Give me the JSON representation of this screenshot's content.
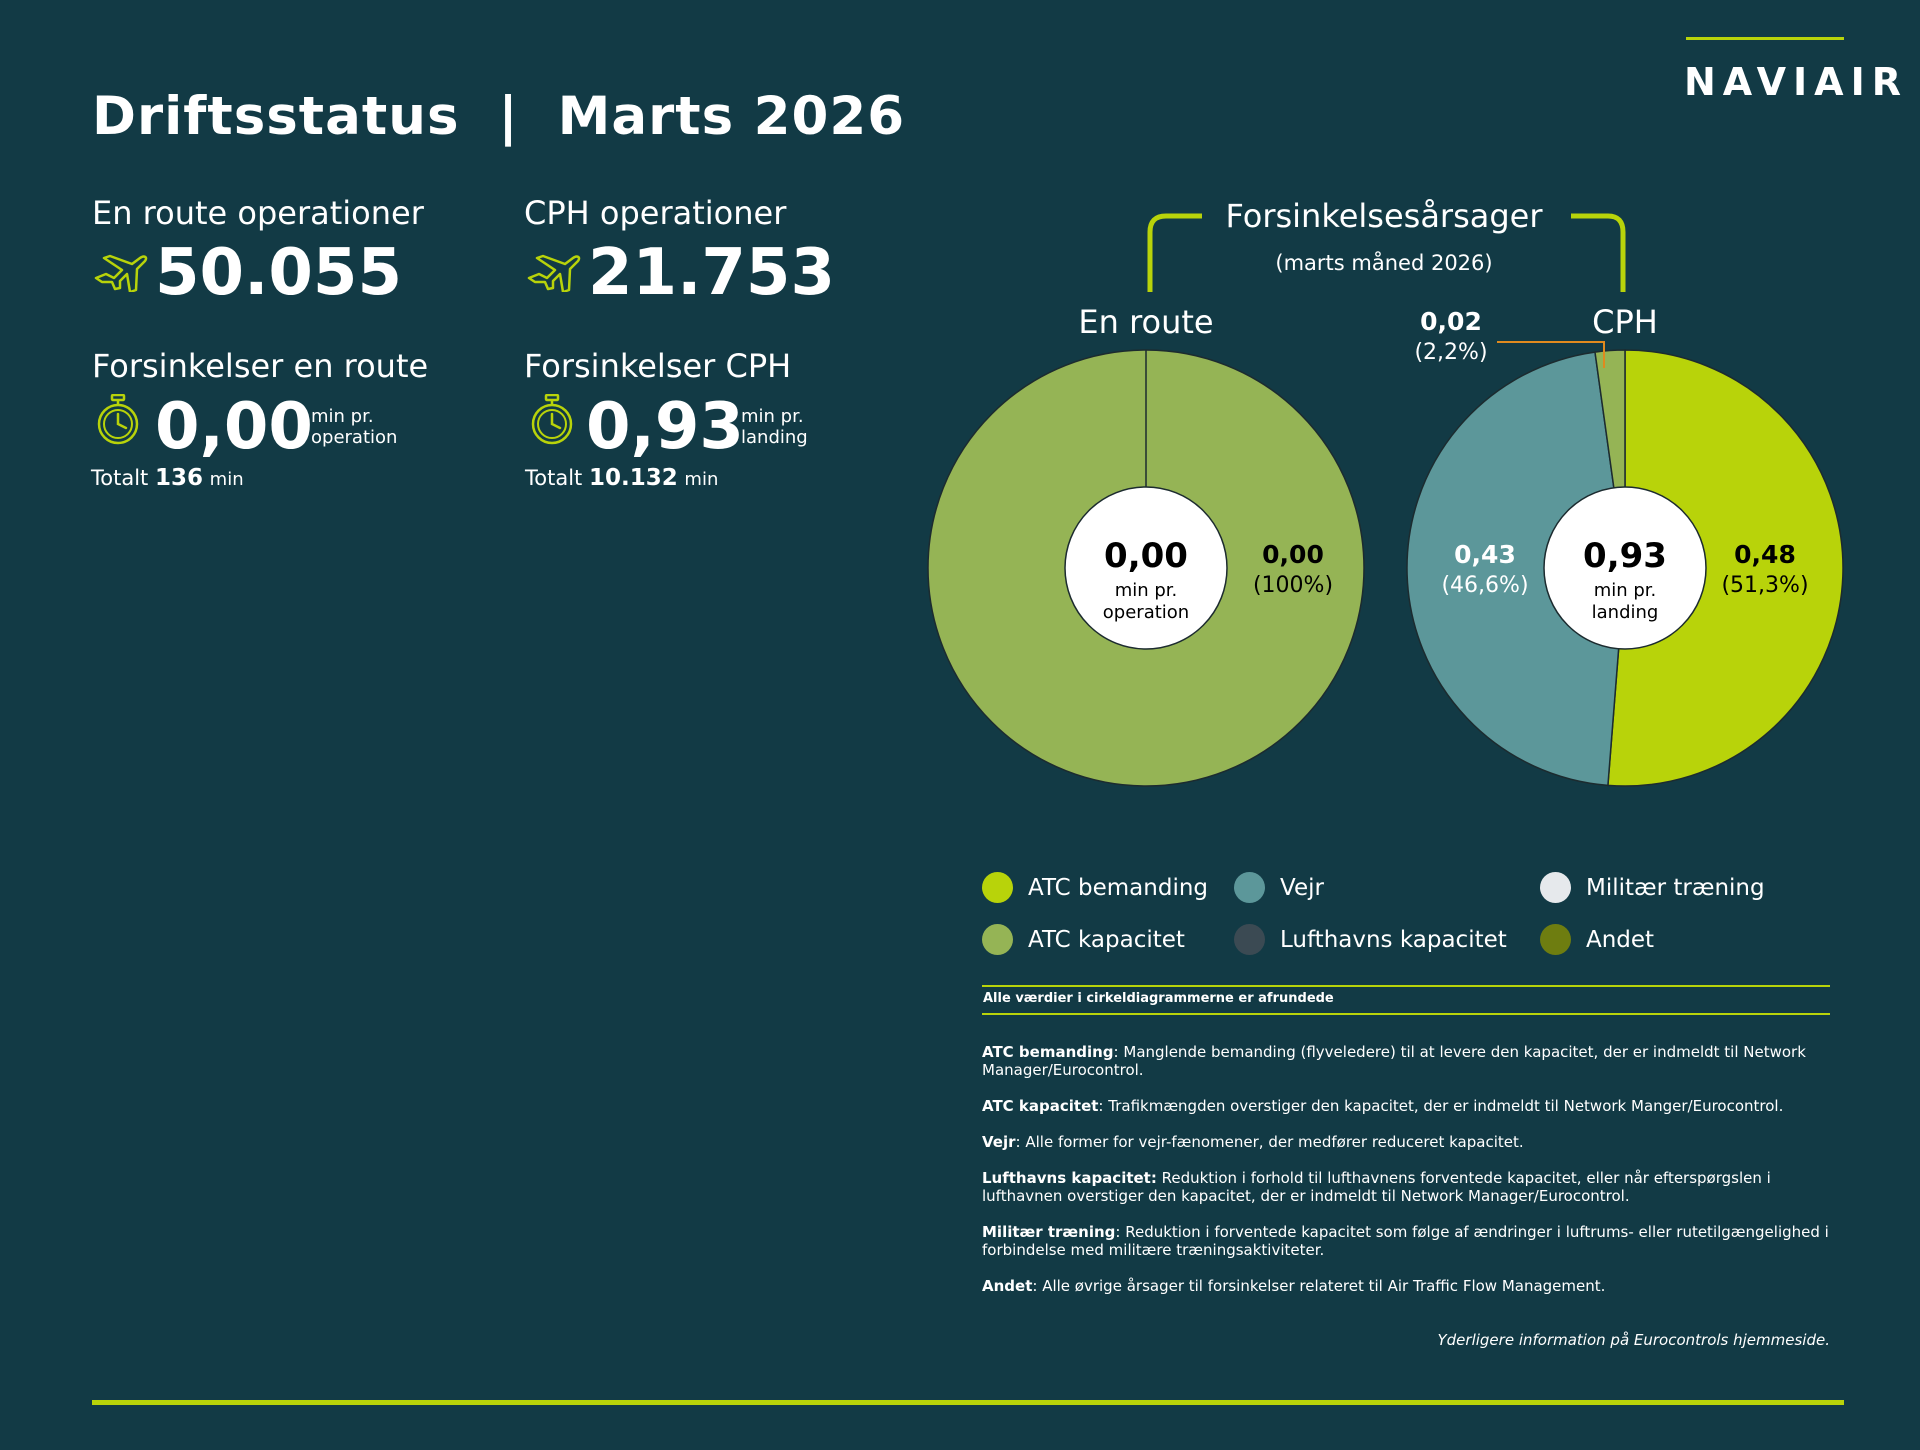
{
  "header": {
    "title": "Driftsstatus  |  Marts 2026",
    "logo_text": "NAVIAIR"
  },
  "enroute": {
    "ops_label": "En route operationer",
    "ops_value": "50.055",
    "delay_label": "Forsinkelser en route",
    "delay_value": "0,00",
    "delay_unit_1": "min pr.",
    "delay_unit_2": "operation",
    "total_label": "Totalt",
    "total_value": "136",
    "total_unit": "min"
  },
  "cph": {
    "ops_label": "CPH operationer",
    "ops_value": "21.753",
    "delay_label": "Forsinkelser CPH",
    "delay_value": "0,93",
    "delay_unit_1": "min pr.",
    "delay_unit_2": "landing",
    "total_label": "Totalt",
    "total_value": "10.132",
    "total_unit": "min"
  },
  "causes": {
    "title": "Forsinkelsesårsager",
    "subtitle": "(marts måned 2026)"
  },
  "chart_data": [
    {
      "type": "pie",
      "title": "En route",
      "center_value": "0,00",
      "center_unit_1": "min pr.",
      "center_unit_2": "operation",
      "slices": [
        {
          "name": "ATC kapacitet",
          "value": 0.0,
          "percent": 100.0,
          "value_label": "0,00",
          "pct_label": "(100%)",
          "color": "#95b455"
        }
      ]
    },
    {
      "type": "pie",
      "title": "CPH",
      "center_value": "0,93",
      "center_unit_1": "min pr.",
      "center_unit_2": "landing",
      "slices": [
        {
          "name": "ATC bemanding",
          "value": 0.48,
          "percent": 51.3,
          "value_label": "0,48",
          "pct_label": "(51,3%)",
          "color": "#b8d30a"
        },
        {
          "name": "Vejr",
          "value": 0.43,
          "percent": 46.6,
          "value_label": "0,43",
          "pct_label": "(46,6%)",
          "color": "#5c979a"
        },
        {
          "name": "ATC kapacitet",
          "value": 0.02,
          "percent": 2.2,
          "value_label": "0,02",
          "pct_label": "(2,2%)",
          "color": "#95b455"
        }
      ]
    }
  ],
  "legend": [
    {
      "label": "ATC bemanding",
      "color": "#b8d30a"
    },
    {
      "label": "Vejr",
      "color": "#5c979a"
    },
    {
      "label": "Militær træning",
      "color": "#e6e9ec"
    },
    {
      "label": "ATC kapacitet",
      "color": "#95b455"
    },
    {
      "label": "Lufthavns kapacitet",
      "color": "#3b4a53"
    },
    {
      "label": "Andet",
      "color": "#6e7d10"
    }
  ],
  "rounding_note": "Alle værdier i cirkeldiagrammerne er afrundede",
  "definitions": [
    {
      "term": "ATC bemanding",
      "sep": ":",
      "text": " Manglende bemanding (flyveledere) til at levere den kapacitet, der er indmeldt til Network Manager/Eurocontrol."
    },
    {
      "term": "ATC kapacitet",
      "sep": ":",
      "text": " Trafikmængden overstiger den kapacitet, der er indmeldt til Network Manger/Eurocontrol."
    },
    {
      "term": "Vejr",
      "sep": ":",
      "text": " Alle former for vejr-fænomener, der medfører reduceret kapacitet."
    },
    {
      "term": "Lufthavns kapacitet:",
      "sep": "",
      "text": " Reduktion i forhold til lufthavnens forventede kapacitet, eller når efterspørgslen i lufthavnen overstiger den kapacitet, der er indmeldt til Network Manager/Eurocontrol."
    },
    {
      "term": "Militær træning",
      "sep": ":",
      "text": " Reduktion i forventede kapacitet som følge af ændringer i luftrums- eller rutetilgængelighed i forbindelse med militære træningsaktiviteter."
    },
    {
      "term": "Andet",
      "sep": ":",
      "text": " Alle øvrige årsager til forsinkelser relateret til Air Traffic Flow Management."
    }
  ],
  "footer_note": "Yderligere information på Eurocontrols hjemmeside."
}
